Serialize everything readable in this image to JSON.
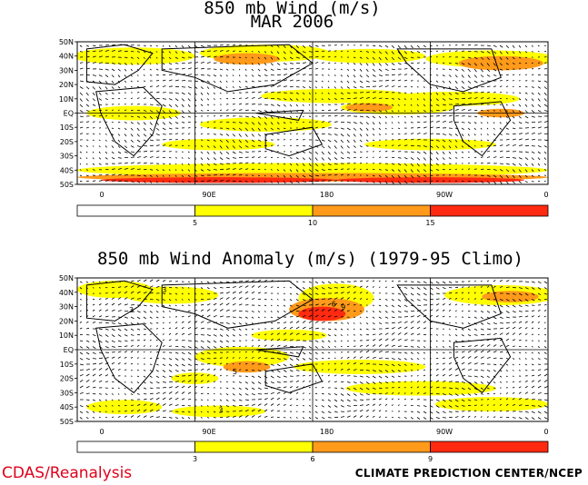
{
  "titles": {
    "top_line1": "850 mb Wind (m/s)",
    "top_line2": "MAR 2006",
    "bottom": "850 mb Wind Anomaly (m/s) (1979-95 Climo)"
  },
  "footer": {
    "left": "CDAS/Reanalysis",
    "right": "CLIMATE PREDICTION CENTER/NCEP"
  },
  "chart_data": [
    {
      "type": "heatmap",
      "title": "850 mb Wind (m/s) MAR 2006",
      "lat_labels": [
        "50N",
        "40N",
        "30N",
        "20N",
        "10N",
        "EQ",
        "10S",
        "20S",
        "30S",
        "40S",
        "50S"
      ],
      "lon_labels": [
        "0",
        "90E",
        "180",
        "90W",
        "0"
      ],
      "colorbar": {
        "levels": [
          "5",
          "10",
          "15"
        ],
        "colors": [
          "#ffffff",
          "#ffff00",
          "#ff9a1a",
          "#ff2a10"
        ]
      }
    },
    {
      "type": "heatmap",
      "title": "850 mb Wind Anomaly (m/s) (1979-95 Climo)",
      "lat_labels": [
        "50N",
        "40N",
        "30N",
        "20N",
        "10N",
        "EQ",
        "10S",
        "20S",
        "30S",
        "40S",
        "50S"
      ],
      "lon_labels": [
        "0",
        "90E",
        "180",
        "90W",
        "0"
      ],
      "contour_labels": [
        "3",
        "3",
        "5",
        "3",
        "6",
        "9"
      ],
      "colorbar": {
        "levels": [
          "3",
          "6",
          "9"
        ],
        "colors": [
          "#ffffff",
          "#ffff00",
          "#ff9a1a",
          "#ff2a10"
        ]
      }
    }
  ]
}
